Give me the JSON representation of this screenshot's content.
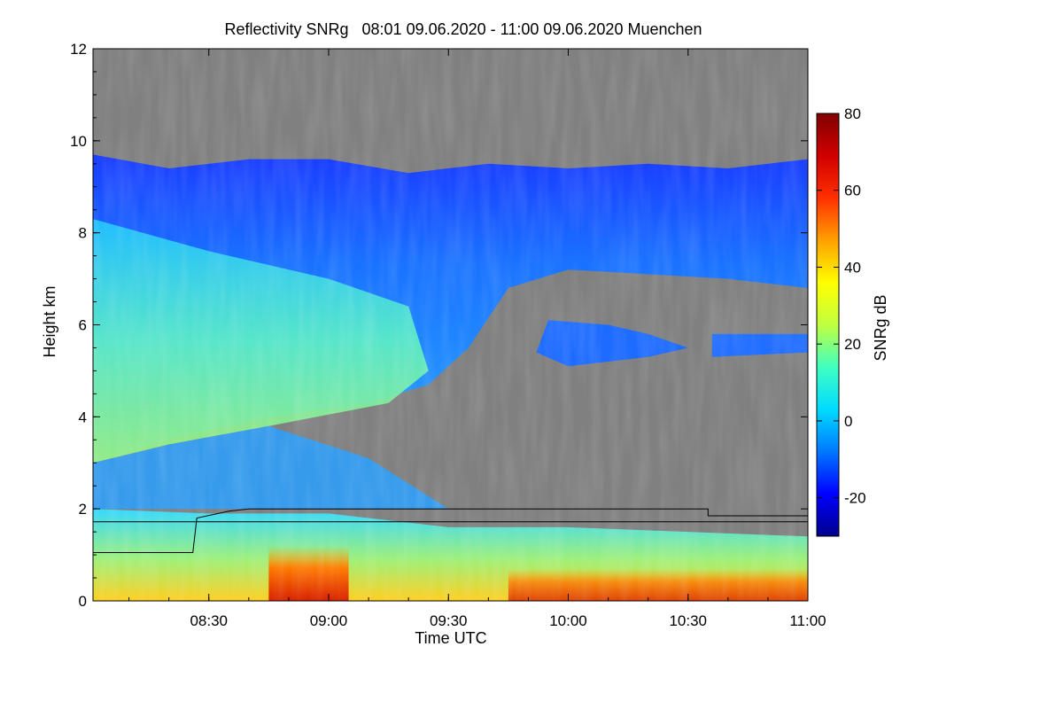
{
  "chart_data": {
    "type": "heatmap",
    "title": "Reflectivity SNRg   08:01 09.06.2020 - 11:00 09.06.2020 Muenchen",
    "xlabel": "Time UTC",
    "ylabel": "Height km",
    "xlim": [
      "08:01",
      "11:00"
    ],
    "ylim": [
      0,
      12
    ],
    "x_ticks": [
      "08:30",
      "09:00",
      "09:30",
      "10:00",
      "10:30",
      "11:00"
    ],
    "y_ticks": [
      "0",
      "2",
      "4",
      "6",
      "8",
      "10",
      "12"
    ],
    "colorbar": {
      "label": "SNRg dB",
      "range": [
        -30,
        80
      ],
      "ticks": [
        "-20",
        "0",
        "20",
        "40",
        "60",
        "80"
      ],
      "colors": [
        "#00008c",
        "#0000ff",
        "#0078ff",
        "#00dcff",
        "#40ffc0",
        "#c0ff40",
        "#ffff00",
        "#ffa000",
        "#ff3000",
        "#d00000",
        "#800000"
      ]
    },
    "no_signal_color": "#808080",
    "cloud_top_km": [
      [
        "08:01",
        9.7
      ],
      [
        "08:20",
        9.4
      ],
      [
        "08:40",
        9.6
      ],
      [
        "09:00",
        9.6
      ],
      [
        "09:20",
        9.3
      ],
      [
        "09:40",
        9.5
      ],
      [
        "10:00",
        9.4
      ],
      [
        "10:20",
        9.5
      ],
      [
        "10:40",
        9.4
      ],
      [
        "11:00",
        9.6
      ]
    ],
    "layer_base_km": [
      [
        "08:01",
        3.0
      ],
      [
        "08:20",
        3.5
      ],
      [
        "08:45",
        4.0
      ],
      [
        "09:10",
        4.3
      ],
      [
        "09:25",
        4.7
      ],
      [
        "09:35",
        5.5
      ],
      [
        "09:45",
        6.8
      ],
      [
        "10:00",
        7.2
      ],
      [
        "10:20",
        7.1
      ],
      [
        "10:40",
        7.0
      ],
      [
        "11:00",
        6.8
      ]
    ],
    "boundary_layer_top_km": [
      [
        "08:01",
        2.0
      ],
      [
        "08:30",
        1.9
      ],
      [
        "09:00",
        1.9
      ],
      [
        "09:30",
        1.6
      ],
      [
        "10:00",
        1.6
      ],
      [
        "10:30",
        1.5
      ],
      [
        "11:00",
        1.4
      ]
    ],
    "max_reflectivity_region": {
      "time_range": [
        "08:45",
        "09:05"
      ],
      "height_km": [
        0,
        1.2
      ],
      "snr_db": 60
    },
    "boundary_line_km": [
      [
        "08:01",
        1.05
      ],
      [
        "08:26",
        1.05
      ],
      [
        "08:27",
        1.8
      ],
      [
        "08:35",
        1.95
      ],
      [
        "08:40",
        2.0
      ],
      [
        "10:35",
        2.0
      ],
      [
        "10:35",
        1.85
      ],
      [
        "11:00",
        1.85
      ]
    ],
    "reference_line_km": 1.72
  }
}
